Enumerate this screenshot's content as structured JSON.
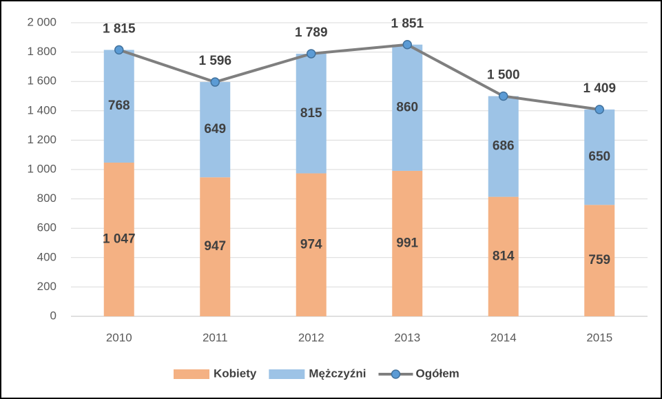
{
  "chart_data": {
    "type": "bar",
    "stacked": true,
    "categories": [
      "2010",
      "2011",
      "2012",
      "2013",
      "2014",
      "2015"
    ],
    "series": [
      {
        "name": "Kobiety",
        "color": "#f4b183",
        "values": [
          1047,
          947,
          974,
          991,
          814,
          759
        ],
        "value_labels": [
          "1 047",
          "947",
          "974",
          "991",
          "814",
          "759"
        ]
      },
      {
        "name": "Mężczyźni",
        "color": "#9dc3e6",
        "values": [
          768,
          649,
          815,
          860,
          686,
          650
        ],
        "value_labels": [
          "768",
          "649",
          "815",
          "860",
          "686",
          "650"
        ]
      },
      {
        "name": "Ogółem",
        "type": "line",
        "color": "#7f7f7f",
        "marker_color": "#5b9bd5",
        "values": [
          1815,
          1596,
          1789,
          1851,
          1500,
          1409
        ],
        "value_labels": [
          "1 815",
          "1 596",
          "1 789",
          "1 851",
          "1 500",
          "1 409"
        ]
      }
    ],
    "ylim": [
      0,
      2000
    ],
    "yticks": [
      0,
      200,
      400,
      600,
      800,
      {
        "value": 1000,
        "label": "1 000"
      },
      {
        "value": 1200,
        "label": "1 200"
      },
      {
        "value": 1400,
        "label": "1 400"
      },
      {
        "value": 1600,
        "label": "1 600"
      },
      {
        "value": 1800,
        "label": "1 800"
      },
      {
        "value": 2000,
        "label": "2 000"
      }
    ],
    "grid": true,
    "legend": "bottom"
  }
}
